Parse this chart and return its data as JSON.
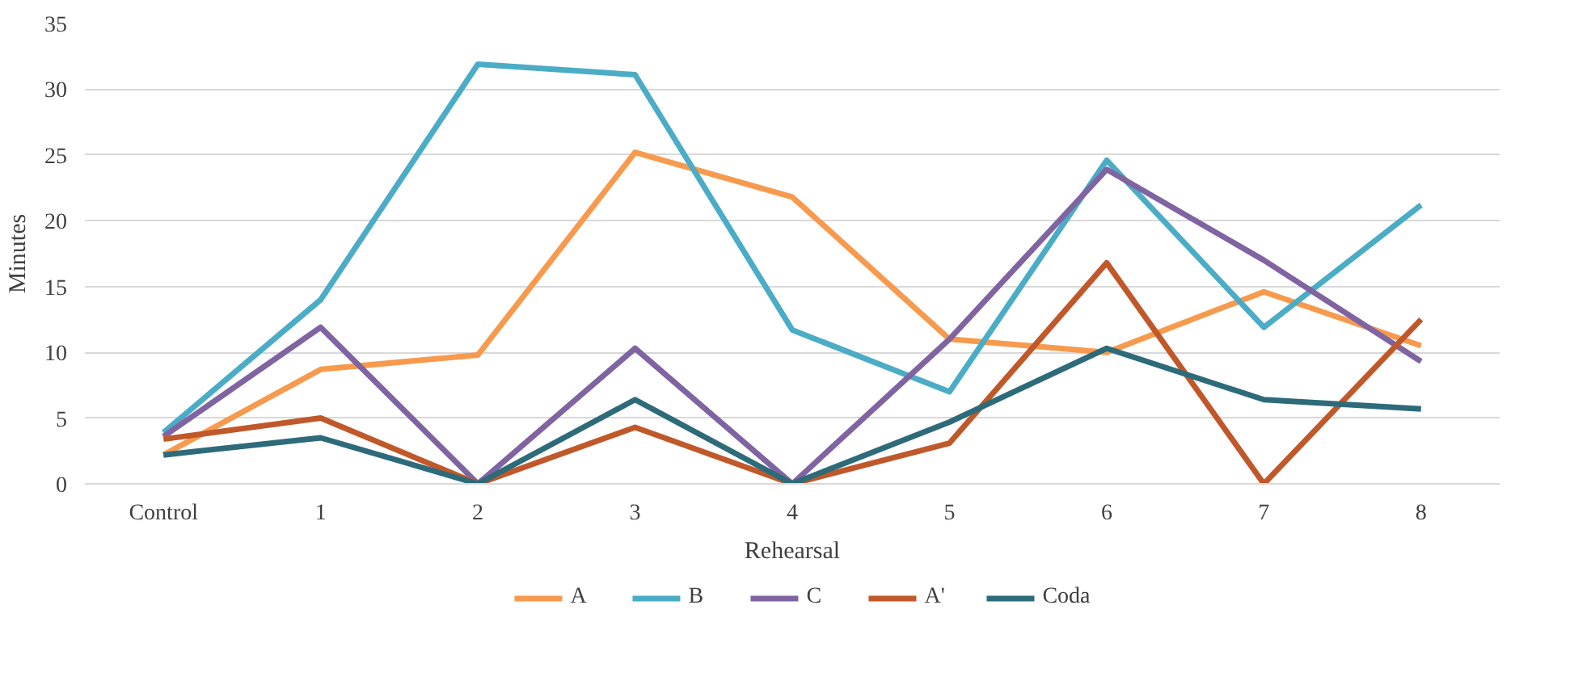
{
  "chart_data": {
    "type": "line",
    "xlabel": "Rehearsal",
    "ylabel": "Minutes",
    "categories": [
      "Control",
      "1",
      "2",
      "3",
      "4",
      "5",
      "6",
      "7",
      "8"
    ],
    "ylim": [
      0,
      35
    ],
    "yticks": [
      0,
      5,
      10,
      15,
      20,
      25,
      30,
      35
    ],
    "grid": "y",
    "legend": "bottom",
    "line_style": "solid",
    "marker": "none",
    "series": [
      {
        "name": "A",
        "color": "#f79a4e",
        "values": [
          2.2,
          8.7,
          9.8,
          25.2,
          21.8,
          11,
          10,
          14.6,
          10.5
        ]
      },
      {
        "name": "B",
        "color": "#4bacc6",
        "values": [
          3.9,
          14,
          31.9,
          31.1,
          11.7,
          7,
          24.6,
          11.9,
          21.2
        ]
      },
      {
        "name": "C",
        "color": "#8064a2",
        "values": [
          3.6,
          11.9,
          0,
          10.3,
          0,
          11,
          23.9,
          17,
          9.3
        ]
      },
      {
        "name": "A'",
        "color": "#c0582a",
        "values": [
          3.4,
          5,
          0,
          4.3,
          0,
          3.1,
          16.8,
          0,
          12.5
        ]
      },
      {
        "name": "Coda",
        "color": "#2e6b7a",
        "values": [
          2.2,
          3.5,
          0,
          6.4,
          0,
          4.7,
          10.3,
          6.4,
          5.7
        ]
      }
    ]
  }
}
